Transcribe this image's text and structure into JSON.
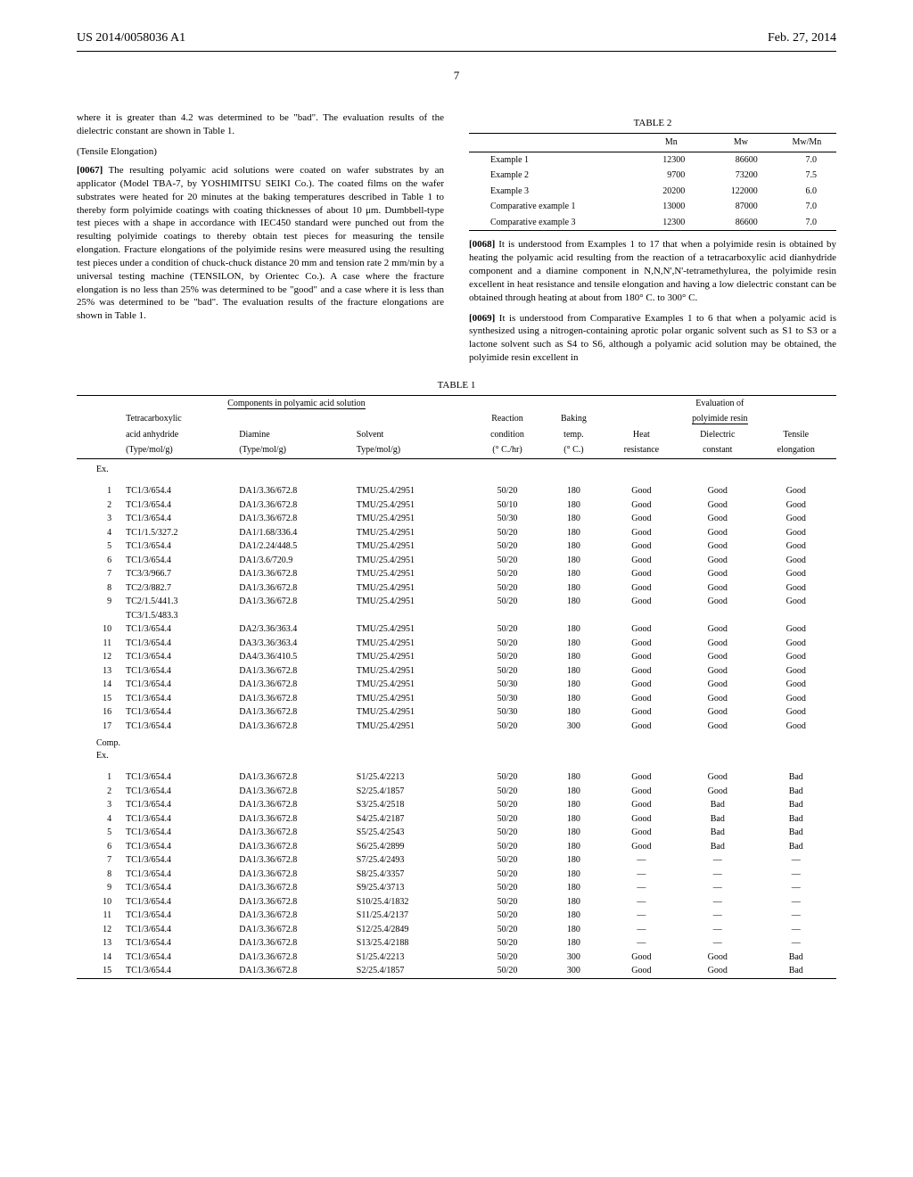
{
  "header": {
    "docnum": "US 2014/0058036 A1",
    "pubdate": "Feb. 27, 2014"
  },
  "pagenum": "7",
  "left": {
    "p1": "where it is greater than 4.2 was determined to be \"bad\". The evaluation results of the dielectric constant are shown in Table 1.",
    "subhead": "(Tensile Elongation)",
    "p2n": "[0067]",
    "p2": "  The resulting polyamic acid solutions were coated on wafer substrates by an applicator (Model TBA-7, by YOSHIMITSU SEIKI Co.). The coated films on the wafer substrates were heated for 20 minutes at the baking temperatures described in Table 1 to thereby form polyimide coatings with coating thicknesses of about 10 μm. Dumbbell-type test pieces with a shape in accordance with IEC450 standard were punched out from the resulting polyimide coatings to thereby obtain test pieces for measuring the tensile elongation. Fracture elongations of the polyimide resins were measured using the resulting test pieces under a condition of chuck-chuck distance 20 mm and tension rate 2 mm/min by a universal testing machine (TENSILON, by Orientec Co.). A case where the fracture elongation is no less than 25% was determined to be \"good\" and a case where it is less than 25% was determined to be \"bad\". The evaluation results of the fracture elongations are shown in Table 1."
  },
  "table2": {
    "caption": "TABLE 2",
    "headers": [
      "Mn",
      "Mw",
      "Mw/Mn"
    ],
    "rows": [
      {
        "name": "Example 1",
        "mn": "12300",
        "mw": "86600",
        "r": "7.0"
      },
      {
        "name": "Example 2",
        "mn": "9700",
        "mw": "73200",
        "r": "7.5"
      },
      {
        "name": "Example 3",
        "mn": "20200",
        "mw": "122000",
        "r": "6.0"
      },
      {
        "name": "Comparative example 1",
        "mn": "13000",
        "mw": "87000",
        "r": "7.0"
      },
      {
        "name": "Comparative example 3",
        "mn": "12300",
        "mw": "86600",
        "r": "7.0"
      }
    ]
  },
  "right": {
    "p1n": "[0068]",
    "p1": "  It is understood from Examples 1 to 17 that when a polyimide resin is obtained by heating the polyamic acid resulting from the reaction of a tetracarboxylic acid dianhydride component and a diamine component in N,N,N',N'-tetramethylurea, the polyimide resin excellent in heat resistance and tensile elongation and having a low dielectric constant can be obtained through heating at about from 180° C. to 300° C.",
    "p2n": "[0069]",
    "p2": "  It is understood from Comparative Examples 1 to 6 that when a polyamic acid is synthesized using a nitrogen-containing aprotic polar organic solvent such as S1 to S3 or a lactone solvent such as S4 to S6, although a polyamic acid solution may be obtained, the polyimide resin excellent in"
  },
  "table1": {
    "caption": "TABLE 1",
    "grouphead1": "Components in polyamic acid solution",
    "grouphead2": "Evaluation of",
    "grouphead2b": "polyimide resin",
    "h_tetra1": "Tetracarboxylic",
    "h_tetra2": "acid anhydride",
    "h_type": "(Type/mol/g)",
    "h_diamine": "Diamine",
    "h_solvent": "Solvent",
    "h_solvent2": "Type/mol/g)",
    "h_reaction": "Reaction",
    "h_condition": "condition",
    "h_condhr": "(° C./hr)",
    "h_baking": "Baking",
    "h_temp": "temp.",
    "h_tempC": "(° C.)",
    "h_heat": "Heat",
    "h_resist": "resistance",
    "h_diel": "Dielectric",
    "h_const": "constant",
    "h_tensile": "Tensile",
    "h_elong": "elongation",
    "sub_ex": "Ex.",
    "sub_comp": "Comp.",
    "sub_comp2": "Ex.",
    "ex_rows": [
      [
        "1",
        "TC1/3/654.4",
        "DA1/3.36/672.8",
        "TMU/25.4/2951",
        "50/20",
        "180",
        "Good",
        "Good",
        "Good"
      ],
      [
        "2",
        "TC1/3/654.4",
        "DA1/3.36/672.8",
        "TMU/25.4/2951",
        "50/10",
        "180",
        "Good",
        "Good",
        "Good"
      ],
      [
        "3",
        "TC1/3/654.4",
        "DA1/3.36/672.8",
        "TMU/25.4/2951",
        "50/30",
        "180",
        "Good",
        "Good",
        "Good"
      ],
      [
        "4",
        "TC1/1.5/327.2",
        "DA1/1.68/336.4",
        "TMU/25.4/2951",
        "50/20",
        "180",
        "Good",
        "Good",
        "Good"
      ],
      [
        "5",
        "TC1/3/654.4",
        "DA1/2.24/448.5",
        "TMU/25.4/2951",
        "50/20",
        "180",
        "Good",
        "Good",
        "Good"
      ],
      [
        "6",
        "TC1/3/654.4",
        "DA1/3.6/720.9",
        "TMU/25.4/2951",
        "50/20",
        "180",
        "Good",
        "Good",
        "Good"
      ],
      [
        "7",
        "TC3/3/966.7",
        "DA1/3.36/672.8",
        "TMU/25.4/2951",
        "50/20",
        "180",
        "Good",
        "Good",
        "Good"
      ],
      [
        "8",
        "TC2/3/882.7",
        "DA1/3.36/672.8",
        "TMU/25.4/2951",
        "50/20",
        "180",
        "Good",
        "Good",
        "Good"
      ],
      [
        "9",
        "TC2/1.5/441.3",
        "DA1/3.36/672.8",
        "TMU/25.4/2951",
        "50/20",
        "180",
        "Good",
        "Good",
        "Good"
      ],
      [
        "",
        "TC3/1.5/483.3",
        "",
        "",
        "",
        "",
        "",
        "",
        ""
      ],
      [
        "10",
        "TC1/3/654.4",
        "DA2/3.36/363.4",
        "TMU/25.4/2951",
        "50/20",
        "180",
        "Good",
        "Good",
        "Good"
      ],
      [
        "11",
        "TC1/3/654.4",
        "DA3/3.36/363.4",
        "TMU/25.4/2951",
        "50/20",
        "180",
        "Good",
        "Good",
        "Good"
      ],
      [
        "12",
        "TC1/3/654.4",
        "DA4/3.36/410.5",
        "TMU/25.4/2951",
        "50/20",
        "180",
        "Good",
        "Good",
        "Good"
      ],
      [
        "13",
        "TC1/3/654.4",
        "DA1/3.36/672.8",
        "TMU/25.4/2951",
        "50/20",
        "180",
        "Good",
        "Good",
        "Good"
      ],
      [
        "14",
        "TC1/3/654.4",
        "DA1/3.36/672.8",
        "TMU/25.4/2951",
        "50/30",
        "180",
        "Good",
        "Good",
        "Good"
      ],
      [
        "15",
        "TC1/3/654.4",
        "DA1/3.36/672.8",
        "TMU/25.4/2951",
        "50/30",
        "180",
        "Good",
        "Good",
        "Good"
      ],
      [
        "16",
        "TC1/3/654.4",
        "DA1/3.36/672.8",
        "TMU/25.4/2951",
        "50/30",
        "180",
        "Good",
        "Good",
        "Good"
      ],
      [
        "17",
        "TC1/3/654.4",
        "DA1/3.36/672.8",
        "TMU/25.4/2951",
        "50/20",
        "300",
        "Good",
        "Good",
        "Good"
      ]
    ],
    "comp_rows": [
      [
        "1",
        "TC1/3/654.4",
        "DA1/3.36/672.8",
        "S1/25.4/2213",
        "50/20",
        "180",
        "Good",
        "Good",
        "Bad"
      ],
      [
        "2",
        "TC1/3/654.4",
        "DA1/3.36/672.8",
        "S2/25.4/1857",
        "50/20",
        "180",
        "Good",
        "Good",
        "Bad"
      ],
      [
        "3",
        "TC1/3/654.4",
        "DA1/3.36/672.8",
        "S3/25.4/2518",
        "50/20",
        "180",
        "Good",
        "Bad",
        "Bad"
      ],
      [
        "4",
        "TC1/3/654.4",
        "DA1/3.36/672.8",
        "S4/25.4/2187",
        "50/20",
        "180",
        "Good",
        "Bad",
        "Bad"
      ],
      [
        "5",
        "TC1/3/654.4",
        "DA1/3.36/672.8",
        "S5/25.4/2543",
        "50/20",
        "180",
        "Good",
        "Bad",
        "Bad"
      ],
      [
        "6",
        "TC1/3/654.4",
        "DA1/3.36/672.8",
        "S6/25.4/2899",
        "50/20",
        "180",
        "Good",
        "Bad",
        "Bad"
      ],
      [
        "7",
        "TC1/3/654.4",
        "DA1/3.36/672.8",
        "S7/25.4/2493",
        "50/20",
        "180",
        "—",
        "—",
        "—"
      ],
      [
        "8",
        "TC1/3/654.4",
        "DA1/3.36/672.8",
        "S8/25.4/3357",
        "50/20",
        "180",
        "—",
        "—",
        "—"
      ],
      [
        "9",
        "TC1/3/654.4",
        "DA1/3.36/672.8",
        "S9/25.4/3713",
        "50/20",
        "180",
        "—",
        "—",
        "—"
      ],
      [
        "10",
        "TC1/3/654.4",
        "DA1/3.36/672.8",
        "S10/25.4/1832",
        "50/20",
        "180",
        "—",
        "—",
        "—"
      ],
      [
        "11",
        "TC1/3/654.4",
        "DA1/3.36/672.8",
        "S11/25.4/2137",
        "50/20",
        "180",
        "—",
        "—",
        "—"
      ],
      [
        "12",
        "TC1/3/654.4",
        "DA1/3.36/672.8",
        "S12/25.4/2849",
        "50/20",
        "180",
        "—",
        "—",
        "—"
      ],
      [
        "13",
        "TC1/3/654.4",
        "DA1/3.36/672.8",
        "S13/25.4/2188",
        "50/20",
        "180",
        "—",
        "—",
        "—"
      ],
      [
        "14",
        "TC1/3/654.4",
        "DA1/3.36/672.8",
        "S1/25.4/2213",
        "50/20",
        "300",
        "Good",
        "Good",
        "Bad"
      ],
      [
        "15",
        "TC1/3/654.4",
        "DA1/3.36/672.8",
        "S2/25.4/1857",
        "50/20",
        "300",
        "Good",
        "Good",
        "Bad"
      ]
    ]
  }
}
